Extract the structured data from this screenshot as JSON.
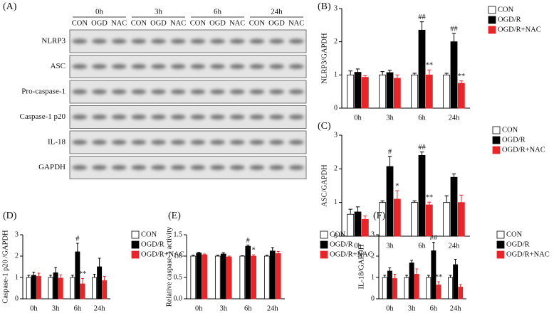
{
  "blot": {
    "label": "(A)",
    "timepoints": [
      "0h",
      "3h",
      "6h",
      "24h"
    ],
    "lanes": [
      "CON",
      "OGD",
      "NAC",
      "CON",
      "OGD",
      "NAC",
      "CON",
      "OGD",
      "NAC",
      "CON",
      "OGD",
      "NAC"
    ],
    "proteins": [
      "NLRP3",
      "ASC",
      "Pro-caspase-1",
      "Caspase-1 p20",
      "IL-18",
      "GAPDH"
    ]
  },
  "chart_data": [
    {
      "type": "bar",
      "label": "(B)",
      "y_label": "NLRP3/GAPDH",
      "categories": [
        "0h",
        "3h",
        "6h",
        "24h"
      ],
      "ylim": [
        0,
        3
      ],
      "yticks": [
        0,
        1,
        2,
        3
      ],
      "series": [
        {
          "name": "CON",
          "color": "#ffffff",
          "values": [
            1.0,
            1.0,
            1.0,
            1.0
          ],
          "errors": [
            0.12,
            0.1,
            0.05,
            0.05
          ]
        },
        {
          "name": "OGD/R",
          "color": "#000000",
          "values": [
            1.08,
            1.07,
            2.35,
            2.0
          ],
          "errors": [
            0.1,
            0.07,
            0.25,
            0.25
          ]
        },
        {
          "name": "OGD/R+NAC",
          "color": "#e8262a",
          "values": [
            0.93,
            0.9,
            1.0,
            0.75
          ],
          "errors": [
            0.05,
            0.1,
            0.15,
            0.07
          ]
        }
      ],
      "annotations": [
        {
          "text": "##",
          "category": "6h",
          "series": "OGD/R"
        },
        {
          "text": "**",
          "category": "6h",
          "series": "OGD/R+NAC"
        },
        {
          "text": "##",
          "category": "24h",
          "series": "OGD/R"
        },
        {
          "text": "**",
          "category": "24h",
          "series": "OGD/R+NAC"
        }
      ]
    },
    {
      "type": "bar",
      "label": "(C)",
      "y_label": "ASC/GAPDH",
      "categories": [
        "0h",
        "3h",
        "6h",
        "24h"
      ],
      "ylim": [
        0,
        3
      ],
      "yticks": [
        0,
        1,
        2,
        3
      ],
      "series": [
        {
          "name": "CON",
          "color": "#ffffff",
          "values": [
            0.65,
            1.0,
            1.0,
            1.0
          ],
          "errors": [
            0.15,
            0.05,
            0.05,
            0.2
          ]
        },
        {
          "name": "OGD/R",
          "color": "#000000",
          "values": [
            0.72,
            2.07,
            2.4,
            1.75
          ],
          "errors": [
            0.15,
            0.3,
            0.1,
            0.1
          ]
        },
        {
          "name": "OGD/R+NAC",
          "color": "#e8262a",
          "values": [
            0.5,
            1.1,
            0.93,
            1.0
          ],
          "errors": [
            0.1,
            0.25,
            0.08,
            0.22
          ]
        }
      ],
      "annotations": [
        {
          "text": "#",
          "category": "3h",
          "series": "OGD/R"
        },
        {
          "text": "*",
          "category": "3h",
          "series": "OGD/R+NAC"
        },
        {
          "text": "##",
          "category": "6h",
          "series": "OGD/R"
        },
        {
          "text": "**",
          "category": "6h",
          "series": "OGD/R+NAC"
        }
      ]
    },
    {
      "type": "bar",
      "label": "(D)",
      "y_label": "Caspase-1 p20 /GAPDH",
      "categories": [
        "0h",
        "3h",
        "6h",
        "24h"
      ],
      "ylim": [
        0,
        3
      ],
      "yticks": [
        0,
        1,
        2,
        3
      ],
      "series": [
        {
          "name": "CON",
          "color": "#ffffff",
          "values": [
            1.0,
            1.0,
            1.0,
            1.0
          ],
          "errors": [
            0.1,
            0.1,
            0.1,
            0.15
          ]
        },
        {
          "name": "OGD/R",
          "color": "#000000",
          "values": [
            1.1,
            1.22,
            2.2,
            1.5
          ],
          "errors": [
            0.15,
            0.25,
            0.4,
            0.4
          ]
        },
        {
          "name": "OGD/R+NAC",
          "color": "#e8262a",
          "values": [
            1.05,
            0.97,
            0.7,
            0.85
          ],
          "errors": [
            0.15,
            0.15,
            0.25,
            0.2
          ]
        }
      ],
      "annotations": [
        {
          "text": "#",
          "category": "6h",
          "series": "OGD/R"
        },
        {
          "text": "**",
          "category": "6h",
          "series": "OGD/R+NAC"
        }
      ]
    },
    {
      "type": "bar",
      "label": "(E)",
      "y_label": "Relative caspase-1 activity",
      "categories": [
        "0h",
        "3h",
        "6h",
        "24h"
      ],
      "ylim": [
        0,
        1.5
      ],
      "yticks": [
        {
          "value": 0,
          "label": "0.0"
        },
        0.5,
        {
          "value": 1.0,
          "label": "1.0"
        },
        1.5
      ],
      "series": [
        {
          "name": "CON",
          "color": "#ffffff",
          "values": [
            1.0,
            1.0,
            1.0,
            1.0
          ],
          "errors": [
            0.02,
            0.02,
            0.01,
            0.02
          ]
        },
        {
          "name": "OGD/R",
          "color": "#000000",
          "values": [
            1.07,
            1.05,
            1.23,
            1.12
          ],
          "errors": [
            0.02,
            0.03,
            0.03,
            0.08
          ]
        },
        {
          "name": "OGD/R+NAC",
          "color": "#e8262a",
          "values": [
            1.03,
            0.98,
            1.0,
            1.06
          ],
          "errors": [
            0.02,
            0.02,
            0.03,
            0.05
          ]
        }
      ],
      "annotations": [
        {
          "text": "#",
          "category": "6h",
          "series": "OGD/R"
        },
        {
          "text": "*",
          "category": "6h",
          "series": "OGD/R+NAC"
        }
      ]
    },
    {
      "type": "bar",
      "label": "(F)",
      "y_label": "IL-18/GAPDH",
      "categories": [
        "0h",
        "3h",
        "6h",
        "24h"
      ],
      "ylim": [
        0,
        3
      ],
      "yticks": [
        0,
        1,
        2,
        3
      ],
      "series": [
        {
          "name": "CON",
          "color": "#ffffff",
          "values": [
            1.0,
            1.0,
            1.0,
            1.0
          ],
          "errors": [
            0.1,
            0.1,
            0.1,
            0.1
          ]
        },
        {
          "name": "OGD/R",
          "color": "#000000",
          "values": [
            1.3,
            1.68,
            2.25,
            1.6
          ],
          "errors": [
            0.15,
            0.12,
            0.4,
            0.25
          ]
        },
        {
          "name": "OGD/R+NAC",
          "color": "#e8262a",
          "values": [
            0.95,
            1.15,
            0.65,
            0.55
          ],
          "errors": [
            0.2,
            0.25,
            0.15,
            0.12
          ]
        }
      ],
      "annotations": [
        {
          "text": "##",
          "category": "6h",
          "series": "OGD/R"
        },
        {
          "text": "**",
          "category": "6h",
          "series": "OGD/R+NAC"
        }
      ]
    }
  ]
}
